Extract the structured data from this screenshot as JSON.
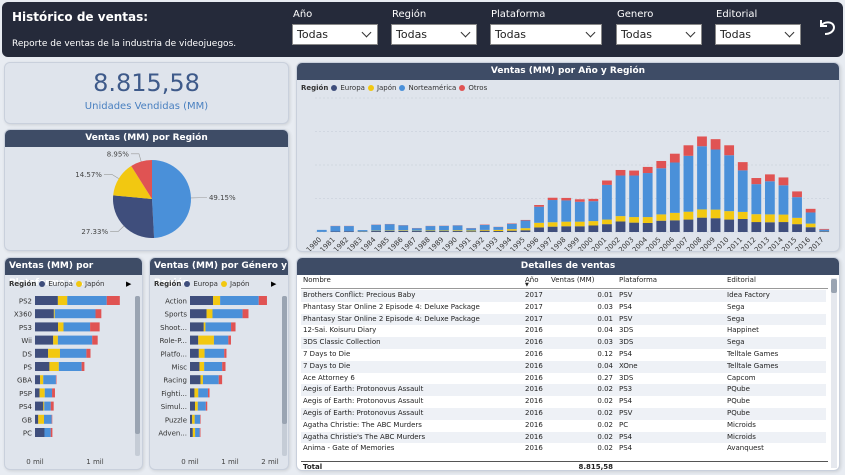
{
  "header": {
    "title": "Histórico de ventas:",
    "subtitle": "Reporte de ventas de la industria de videojuegos.",
    "filters": [
      {
        "label": "Año",
        "value": "Todas"
      },
      {
        "label": "Región",
        "value": "Todas"
      },
      {
        "label": "Plataforma",
        "value": "Todas"
      },
      {
        "label": "Genero",
        "value": "Todas"
      },
      {
        "label": "Editorial",
        "value": "Todas"
      }
    ],
    "back_icon": "undo-arrow-icon"
  },
  "kpi": {
    "value": "8.815,58",
    "label": "Unidades Vendidas (MM)"
  },
  "colors": {
    "Europa": "#3f4e7c",
    "Japón": "#f2c811",
    "Norteamérica": "#4a90d9",
    "Otros": "#e05353"
  },
  "charts": {
    "pie": {
      "title": "Ventas (MM) por Región",
      "chart_data": {
        "type": "pie",
        "slices": [
          {
            "name": "Norteamérica",
            "value": 49.15,
            "label": "49.15%"
          },
          {
            "name": "Europa",
            "value": 27.33,
            "label": "27.33%"
          },
          {
            "name": "Japón",
            "value": 14.57,
            "label": "14.57%"
          },
          {
            "name": "Otros",
            "value": 8.95,
            "label": "8.95%"
          }
        ]
      }
    },
    "year": {
      "title": "Ventas (MM) por Año y Región",
      "legend_title": "Región",
      "legend": [
        "Europa",
        "Japón",
        "Norteamérica",
        "Otros"
      ],
      "chart_data": {
        "type": "bar",
        "stacked": true,
        "categories": [
          "1980",
          "1981",
          "1982",
          "1983",
          "1984",
          "1985",
          "1986",
          "1987",
          "1988",
          "1989",
          "1990",
          "1991",
          "1992",
          "1993",
          "1994",
          "1995",
          "1996",
          "1997",
          "1998",
          "1999",
          "2000",
          "2001",
          "2002",
          "2003",
          "2004",
          "2005",
          "2006",
          "2007",
          "2008",
          "2009",
          "2010",
          "2011",
          "2012",
          "2013",
          "2014",
          "2015",
          "2016",
          "2017"
        ],
        "series": [
          {
            "name": "Europa",
            "values": [
              1,
              3,
              4,
              2,
              5,
              6,
              6,
              5,
              5,
              5,
              5,
              4,
              7,
              5,
              7,
              9,
              24,
              28,
              30,
              30,
              34,
              41,
              55,
              49,
              47,
              59,
              61,
              65,
              75,
              72,
              65,
              68,
              52,
              51,
              52,
              41,
              25,
              3
            ]
          },
          {
            "name": "Japón",
            "values": [
              0,
              0,
              0,
              1,
              2,
              2,
              3,
              2,
              3,
              3,
              4,
              4,
              4,
              6,
              8,
              11,
              24,
              23,
              24,
              24,
              23,
              24,
              28,
              29,
              31,
              33,
              39,
              41,
              43,
              45,
              44,
              37,
              41,
              41,
              39,
              33,
              19,
              1
            ]
          },
          {
            "name": "Norteamérica",
            "values": [
              10,
              28,
              27,
              7,
              31,
              33,
              26,
              13,
              23,
              24,
              25,
              12,
              26,
              15,
              28,
              40,
              84,
              116,
              111,
              104,
              104,
              181,
              212,
              217,
              230,
              241,
              263,
              292,
              330,
              314,
              292,
              217,
              157,
              173,
              153,
              108,
              58,
              8
            ]
          },
          {
            "name": "Otros",
            "values": [
              0,
              1,
              1,
              0,
              1,
              1,
              1,
              1,
              1,
              1,
              1,
              1,
              2,
              1,
              2,
              3,
              9,
              12,
              13,
              13,
              12,
              23,
              29,
              26,
              32,
              38,
              46,
              55,
              51,
              54,
              52,
              43,
              32,
              36,
              41,
              30,
              19,
              4
            ]
          }
        ],
        "ylim": [
          0,
          700
        ]
      }
    },
    "platform": {
      "title": "Ventas (MM) por Plataforma y ...",
      "legend_title": "Región",
      "legend": [
        "Europa",
        "Japón"
      ],
      "categories": [
        "PS2",
        "X360",
        "PS3",
        "Wii",
        "DS",
        "PS",
        "GBA",
        "PSP",
        "PS4",
        "GB",
        "PC"
      ],
      "axis": [
        "0 mil",
        "1 mil"
      ],
      "chart_data": {
        "type": "bar",
        "orientation": "horizontal",
        "stacked": true,
        "categories": [
          "PS2",
          "X360",
          "PS3",
          "Wii",
          "DS",
          "PS",
          "GBA",
          "PSP",
          "PS4",
          "GB",
          "PC"
        ],
        "series": [
          {
            "name": "Europa",
            "values": [
              338,
              279,
              341,
              269,
              194,
              213,
              75,
              68,
              123,
              48,
              140
            ]
          },
          {
            "name": "Japón",
            "values": [
              139,
              13,
              80,
              69,
              175,
              139,
              47,
              76,
              14,
              85,
              0
            ]
          },
          {
            "name": "Norteamérica",
            "values": [
              583,
              602,
              393,
              507,
              390,
              337,
              187,
              108,
              96,
              114,
              93
            ]
          },
          {
            "name": "Otros",
            "values": [
              193,
              86,
              141,
              81,
              61,
              41,
              8,
              43,
              43,
              8,
              24
            ]
          }
        ],
        "xlim": [
          0,
          1300
        ]
      }
    },
    "genre": {
      "title": "Ventas (MM) por Género y Región",
      "legend_title": "Región",
      "legend": [
        "Europa",
        "Japón"
      ],
      "categories": [
        "Action",
        "Sports",
        "Shoot...",
        "Role-P...",
        "Platfo...",
        "Misc",
        "Racing",
        "Fighti...",
        "Simul...",
        "Puzzle",
        "Adven..."
      ],
      "axis": [
        "0 mil",
        "1 mil",
        "2 mil"
      ],
      "chart_data": {
        "type": "bar",
        "orientation": "horizontal",
        "stacked": true,
        "categories": [
          "Action",
          "Sports",
          "Shoot...",
          "Role-P...",
          "Platfo...",
          "Misc",
          "Racing",
          "Fighti...",
          "Simul...",
          "Puzzle",
          "Adven..."
        ],
        "series": [
          {
            "name": "Europa",
            "values": [
              525,
              376,
              313,
              188,
              201,
              215,
              238,
              101,
              114,
              50,
              64
            ]
          },
          {
            "name": "Japón",
            "values": [
              160,
              135,
              38,
              356,
              130,
              107,
              56,
              87,
              63,
              57,
              52
            ]
          },
          {
            "name": "Norteamérica",
            "values": [
              877,
              684,
              582,
              327,
              447,
              410,
              359,
              220,
              183,
              123,
              105
            ]
          },
          {
            "name": "Otros",
            "values": [
              187,
              134,
              102,
              60,
              51,
              75,
              77,
              36,
              32,
              12,
              17
            ]
          }
        ],
        "xlim": [
          0,
          2000
        ]
      }
    }
  },
  "details": {
    "title": "Detalles de ventas",
    "columns": [
      "Nombre",
      "Año",
      "Ventas (MM)",
      "Plataforma",
      "Editorial"
    ],
    "rows": [
      [
        "Brothers Conflict: Precious Baby",
        "2017",
        "0.01",
        "PSV",
        "Idea Factory"
      ],
      [
        "Phantasy Star Online 2 Episode 4: Deluxe Package",
        "2017",
        "0.03",
        "PS4",
        "Sega"
      ],
      [
        "Phantasy Star Online 2 Episode 4: Deluxe Package",
        "2017",
        "0.01",
        "PSV",
        "Sega"
      ],
      [
        "12-Sai. Koisuru Diary",
        "2016",
        "0.04",
        "3DS",
        "Happinet"
      ],
      [
        "3DS Classic Collection",
        "2016",
        "0.03",
        "3DS",
        "Sega"
      ],
      [
        "7 Days to Die",
        "2016",
        "0.12",
        "PS4",
        "Telltale Games"
      ],
      [
        "7 Days to Die",
        "2016",
        "0.04",
        "XOne",
        "Telltale Games"
      ],
      [
        "Ace Attorney 6",
        "2016",
        "0.27",
        "3DS",
        "Capcom"
      ],
      [
        "Aegis of Earth: Protonovus Assault",
        "2016",
        "0.02",
        "PS3",
        "PQube"
      ],
      [
        "Aegis of Earth: Protonovus Assault",
        "2016",
        "0.02",
        "PS4",
        "PQube"
      ],
      [
        "Aegis of Earth: Protonovus Assault",
        "2016",
        "0.02",
        "PSV",
        "PQube"
      ],
      [
        "Agatha Christie: The ABC Murders",
        "2016",
        "0.02",
        "PC",
        "Microids"
      ],
      [
        "Agatha Christie's The ABC Murders",
        "2016",
        "0.02",
        "PS4",
        "Microids"
      ],
      [
        "Anima - Gate of Memories",
        "2016",
        "0.02",
        "PS4",
        "Avanquest"
      ]
    ],
    "total_label": "Total",
    "total_value": "8.815,58"
  }
}
